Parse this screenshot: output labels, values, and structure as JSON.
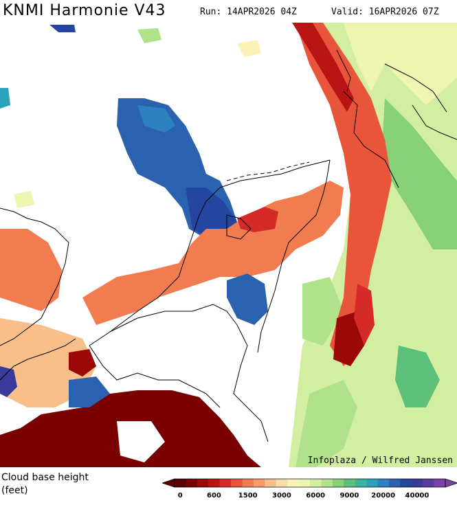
{
  "header": {
    "title": "KNMI Harmonie V43",
    "run": "Run: 14APR2026 04Z",
    "valid": "Valid: 16APR2026 07Z"
  },
  "map": {
    "credit": "Infoplaza / Wilfred Janssen",
    "map_type": "cloud base height forecast over the Netherlands and surroundings",
    "no_cloud_color": "#ffffff",
    "border_color": "#000000"
  },
  "legend": {
    "title": "Cloud base height\n(feet)",
    "labels": [
      "0",
      "600",
      "1500",
      "3000",
      "6000",
      "9000",
      "20000",
      "40000"
    ],
    "colors": [
      "#5a0000",
      "#7a0000",
      "#9a0808",
      "#b81414",
      "#d42a28",
      "#e8553a",
      "#f07c50",
      "#f59a68",
      "#f8bf8a",
      "#fbdda8",
      "#fbf2b8",
      "#eef5b0",
      "#d2eea0",
      "#b0e28c",
      "#86d078",
      "#5cc07a",
      "#3cb49a",
      "#2aa2bc",
      "#2c82c0",
      "#2a62b0",
      "#2446a0",
      "#3a3a9a",
      "#5a3a9e",
      "#7a44a6"
    ]
  }
}
